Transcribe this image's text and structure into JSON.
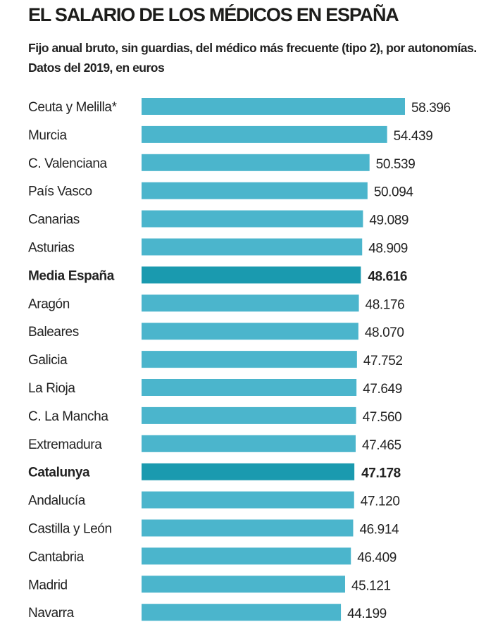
{
  "chart_data": {
    "type": "bar",
    "orientation": "horizontal",
    "title": "EL SALARIO DE LOS MÉDICOS EN ESPAÑA",
    "subtitle": "Fijo anual bruto, sin guardias, del médico más frecuente (tipo 2), por autonomías. Datos del 2019, en euros",
    "categories": [
      "Ceuta y Melilla*",
      "Murcia",
      "C. Valenciana",
      "País Vasco",
      "Canarias",
      "Asturias",
      "Media España",
      "Aragón",
      "Baleares",
      "Galicia",
      "La Rioja",
      "C. La Mancha",
      "Extremadura",
      "Catalunya",
      "Andalucía",
      "Castilla y León",
      "Cantabria",
      "Madrid",
      "Navarra"
    ],
    "values": [
      58396,
      54439,
      50539,
      50094,
      49089,
      48909,
      48616,
      48176,
      48070,
      47752,
      47649,
      47560,
      47465,
      47178,
      47120,
      46914,
      46409,
      45121,
      44199
    ],
    "value_labels": [
      "58.396",
      "54.439",
      "50.539",
      "50.094",
      "49.089",
      "48.909",
      "48.616",
      "48.176",
      "48.070",
      "47.752",
      "47.649",
      "47.560",
      "47.465",
      "47.178",
      "47.120",
      "46.914",
      "46.409",
      "45.121",
      "44.199"
    ],
    "highlighted": [
      "Media España",
      "Catalunya"
    ],
    "xlim": [
      0,
      60000
    ],
    "grid": false,
    "colors": {
      "bar": "#4bb5cc",
      "highlight": "#1a9aaf"
    }
  }
}
